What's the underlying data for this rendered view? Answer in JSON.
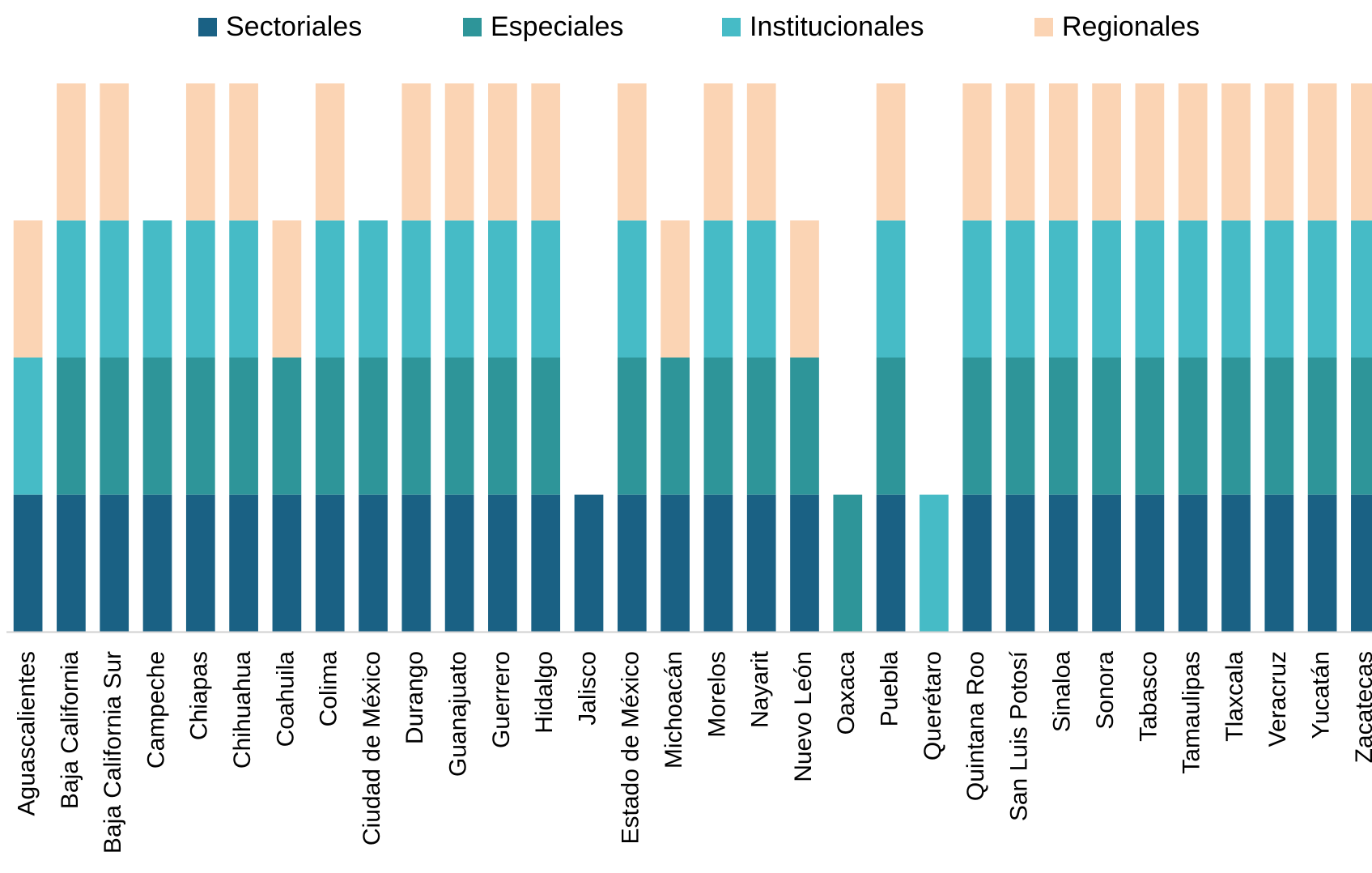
{
  "chart_data": {
    "type": "bar",
    "stacked": true,
    "categories": [
      "Aguascalientes",
      "Baja California",
      "Baja California Sur",
      "Campeche",
      "Chiapas",
      "Chihuahua",
      "Coahuila",
      "Colima",
      "Ciudad de México",
      "Durango",
      "Guanajuato",
      "Guerrero",
      "Hidalgo",
      "Jalisco",
      "Estado de México",
      "Michoacán",
      "Morelos",
      "Nayarit",
      "Nuevo León",
      "Oaxaca",
      "Puebla",
      "Querétaro",
      "Quintana Roo",
      "San Luis Potosí",
      "Sinaloa",
      "Sonora",
      "Tabasco",
      "Tamaulipas",
      "Tlaxcala",
      "Veracruz",
      "Yucatán",
      "Zacatecas"
    ],
    "series": [
      {
        "name": "Sectoriales",
        "color": "#1a6184",
        "values": [
          1,
          1,
          1,
          1,
          1,
          1,
          1,
          1,
          1,
          1,
          1,
          1,
          1,
          1,
          1,
          1,
          1,
          1,
          1,
          0,
          1,
          0,
          1,
          1,
          1,
          1,
          1,
          1,
          1,
          1,
          1,
          1
        ]
      },
      {
        "name": "Especiales",
        "color": "#2e9599",
        "values": [
          0,
          1,
          1,
          1,
          1,
          1,
          1,
          1,
          1,
          1,
          1,
          1,
          1,
          0,
          1,
          1,
          1,
          1,
          1,
          1,
          1,
          0,
          1,
          1,
          1,
          1,
          1,
          1,
          1,
          1,
          1,
          1
        ]
      },
      {
        "name": "Institucionales",
        "color": "#46bbc6",
        "values": [
          1,
          1,
          1,
          1,
          1,
          1,
          0,
          1,
          1,
          1,
          1,
          1,
          1,
          0,
          1,
          0,
          1,
          1,
          0,
          0,
          1,
          1,
          1,
          1,
          1,
          1,
          1,
          1,
          1,
          1,
          1,
          1
        ]
      },
      {
        "name": "Regionales",
        "color": "#fbd4b4",
        "values": [
          1,
          1,
          1,
          0,
          1,
          1,
          1,
          1,
          0,
          1,
          1,
          1,
          1,
          0,
          1,
          1,
          1,
          1,
          1,
          0,
          1,
          0,
          1,
          1,
          1,
          1,
          1,
          1,
          1,
          1,
          1,
          1
        ]
      }
    ],
    "ylim": [
      0,
      4
    ],
    "legend": "top"
  }
}
